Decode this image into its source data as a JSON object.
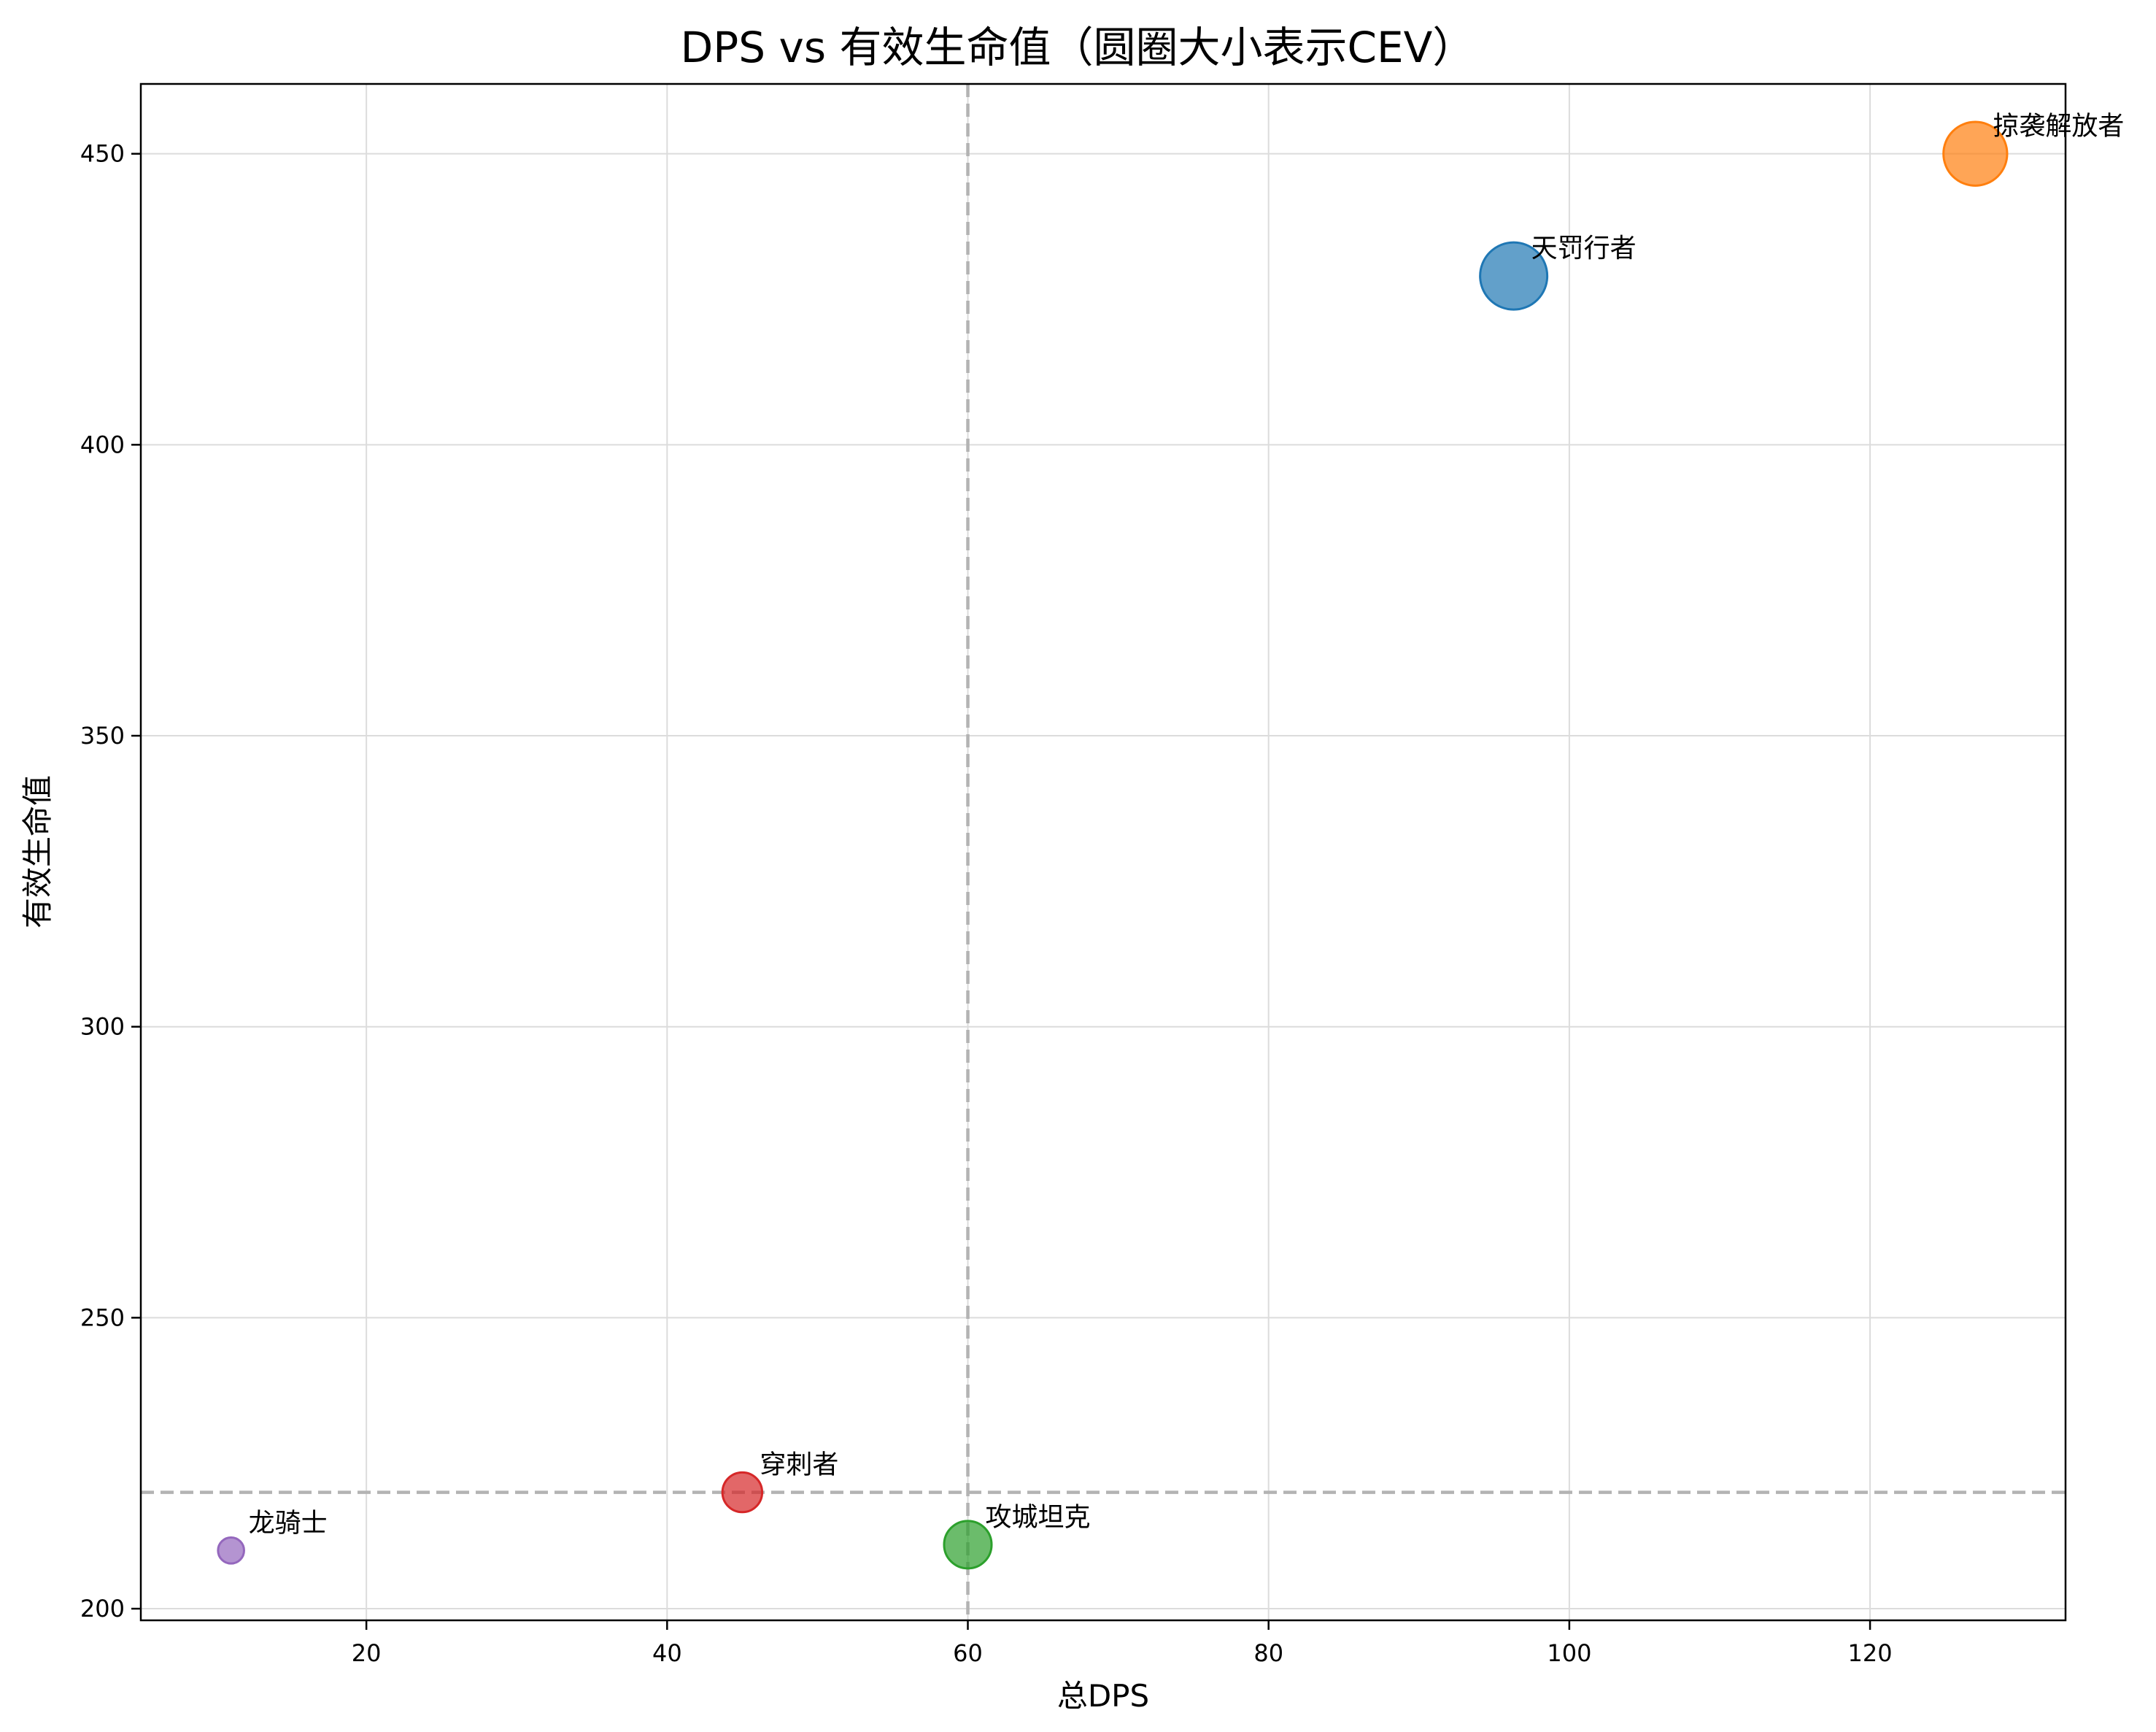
{
  "chart_data": {
    "type": "scatter",
    "title": "DPS vs 有效生命值（圆圈大小表示CEV）",
    "xlabel": "总DPS",
    "ylabel": "有效生命值",
    "xlim": [
      5,
      133
    ],
    "ylim": [
      198,
      462
    ],
    "xticks": [
      20,
      40,
      60,
      80,
      100,
      120
    ],
    "yticks": [
      200,
      250,
      300,
      350,
      400,
      450
    ],
    "grid": true,
    "reference_lines": {
      "vertical_x": 60,
      "horizontal_y": 220
    },
    "size_encoding": "CEV",
    "points": [
      {
        "label": "天罚行者",
        "x": 96.3,
        "y": 429,
        "size": 10,
        "color": "#1f77b4"
      },
      {
        "label": "掠袭解放者",
        "x": 127.0,
        "y": 450,
        "size": 9,
        "color": "#ff7f0e"
      },
      {
        "label": "穿刺者",
        "x": 45.0,
        "y": 220,
        "size": 3.5,
        "color": "#d62728"
      },
      {
        "label": "攻城坦克",
        "x": 60.0,
        "y": 211,
        "size": 5,
        "color": "#2ca02c"
      },
      {
        "label": "龙骑士",
        "x": 11.0,
        "y": 210,
        "size": 1.5,
        "color": "#9467bd"
      }
    ]
  }
}
